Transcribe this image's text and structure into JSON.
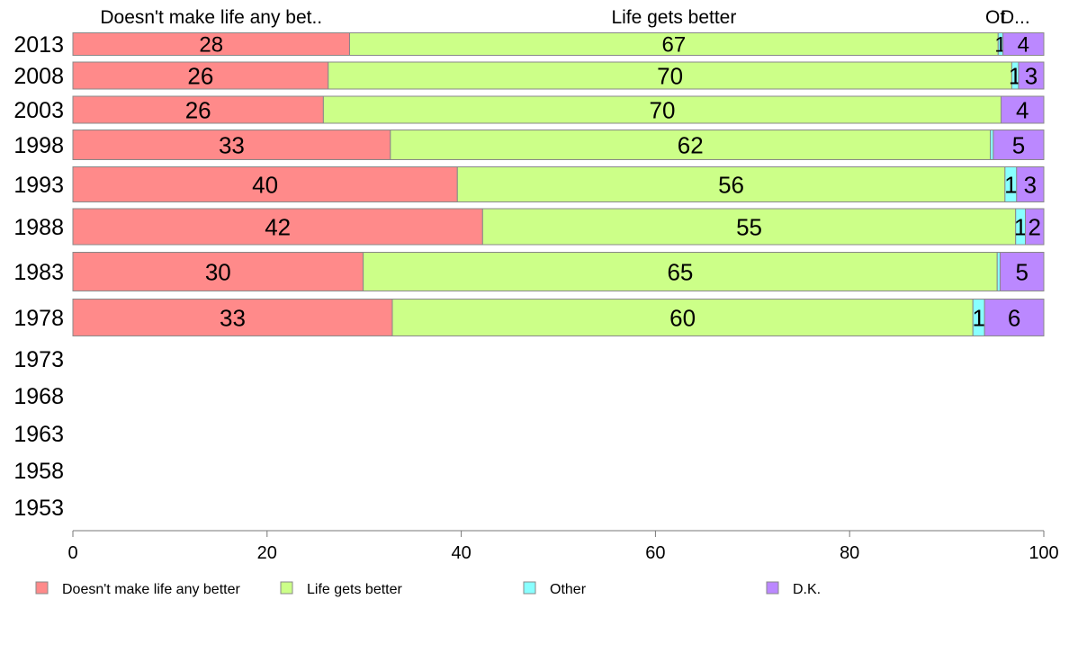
{
  "chart_data": {
    "type": "bar",
    "orientation": "horizontal",
    "stacked": true,
    "categories": [
      "2013",
      "2008",
      "2003",
      "1998",
      "1993",
      "1988",
      "1983",
      "1978",
      "1973",
      "1968",
      "1963",
      "1958",
      "1953"
    ],
    "series": [
      {
        "name": "Doesn't make life any better",
        "header": "Doesn't make life any bet..",
        "color": "#FF8A8A",
        "values": [
          28.5,
          26.3,
          25.8,
          32.7,
          39.6,
          42.2,
          29.9,
          32.9,
          null,
          null,
          null,
          null,
          null
        ],
        "labels": [
          "28",
          "26",
          "26",
          "33",
          "40",
          "42",
          "30",
          "33",
          "",
          "",
          "",
          "",
          ""
        ]
      },
      {
        "name": "Life gets better",
        "header": "Life gets better",
        "color": "#CCFF88",
        "values": [
          66.8,
          70.4,
          69.8,
          61.8,
          56.4,
          54.9,
          65.3,
          59.8,
          null,
          null,
          null,
          null,
          null
        ],
        "labels": [
          "67",
          "70",
          "70",
          "62",
          "56",
          "55",
          "65",
          "60",
          "",
          "",
          "",
          "",
          ""
        ]
      },
      {
        "name": "Other",
        "header": "Ot",
        "color": "#88FFFF",
        "values": [
          0.5,
          0.7,
          0.0,
          0.3,
          1.2,
          1.0,
          0.3,
          1.2,
          null,
          null,
          null,
          null,
          null
        ],
        "labels": [
          "1",
          "1",
          "",
          "",
          "1",
          "1",
          "",
          "1",
          "",
          "",
          "",
          "",
          ""
        ]
      },
      {
        "name": "D.K.",
        "header": "D...",
        "color": "#BB88FF",
        "values": [
          4.2,
          2.6,
          4.4,
          5.2,
          2.8,
          1.9,
          4.5,
          6.1,
          null,
          null,
          null,
          null,
          null
        ],
        "labels": [
          "4",
          "3",
          "4",
          "5",
          "3",
          "2",
          "5",
          "6",
          "",
          "",
          "",
          "",
          ""
        ]
      }
    ],
    "xlim": [
      0,
      100
    ],
    "xticks": [
      "0",
      "20",
      "40",
      "60",
      "80",
      "100"
    ],
    "xtick_values": [
      0,
      20,
      40,
      60,
      80,
      100
    ],
    "grid": false,
    "legend_position": "bottom"
  }
}
